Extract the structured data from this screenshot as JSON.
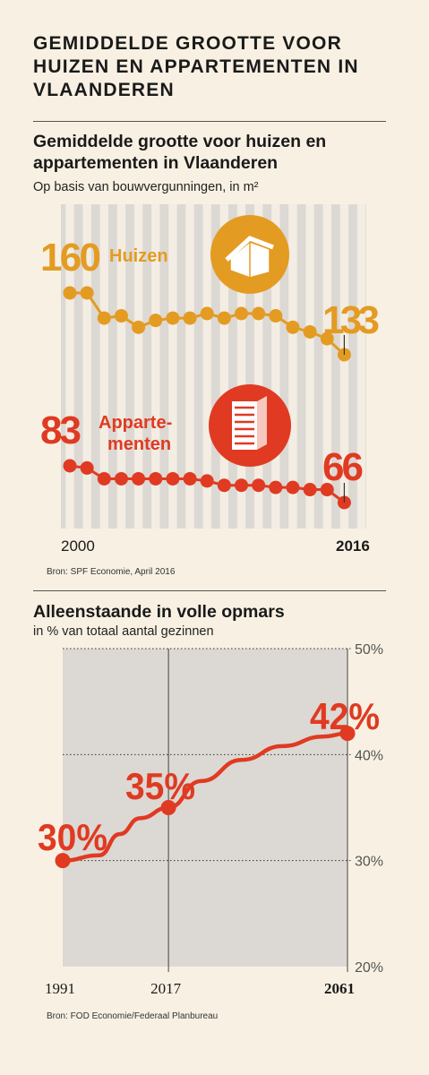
{
  "header": {
    "title": "GEMIDDELDE GROOTTE VOOR HUIZEN EN APPARTEMENTEN IN VLAANDEREN"
  },
  "colors": {
    "orange": "#e39b22",
    "red": "#e03a22",
    "background": "#f8f1e3",
    "plot_bg": "#dcd8d3",
    "stripe": "#d4cfca"
  },
  "chart_data": [
    {
      "type": "line",
      "title": "Gemiddelde grootte voor huizen en appartementen in Vlaanderen",
      "subtitle": "Op basis van bouwvergunningen, in m²",
      "x_start_label": "2000",
      "x_end_label": "2016",
      "grid": false,
      "source": "Bron: SPF Economie, April 2016",
      "series": [
        {
          "name": "Huizen",
          "color": "#e39b22",
          "icon": "house-icon",
          "start_label": "160",
          "end_label": "133",
          "values": [
            160,
            160,
            149,
            150,
            145,
            148,
            149,
            149,
            151,
            149,
            151,
            151,
            150,
            145,
            143,
            140,
            133
          ]
        },
        {
          "name": "Apparte-menten",
          "color": "#e03a22",
          "icon": "building-icon",
          "start_label": "83",
          "end_label": "66",
          "values": [
            83,
            82,
            77,
            77,
            77,
            77,
            77,
            77,
            76,
            74,
            74,
            74,
            73,
            73,
            72,
            72,
            66
          ]
        }
      ]
    },
    {
      "type": "line",
      "title": "Alleenstaande in volle opmars",
      "subtitle": "in % van totaal aantal gezinnen",
      "x": [
        1991,
        2000,
        2005,
        2010,
        2017,
        2025,
        2035,
        2045,
        2055,
        2061
      ],
      "values": [
        30,
        30.5,
        32.5,
        34,
        35,
        37.5,
        39.5,
        40.8,
        41.7,
        42
      ],
      "ylim": [
        20,
        50
      ],
      "yticks": [
        "20%",
        "30%",
        "40%",
        "50%"
      ],
      "xticks": [
        "1991",
        "2017",
        "2061"
      ],
      "marked_points": [
        {
          "x": 1991,
          "label": "30%"
        },
        {
          "x": 2017,
          "label": "35%"
        },
        {
          "x": 2061,
          "label": "42%"
        }
      ],
      "color": "#e03a22",
      "source": "Bron: FOD Economie/Federaal Planbureau"
    }
  ]
}
